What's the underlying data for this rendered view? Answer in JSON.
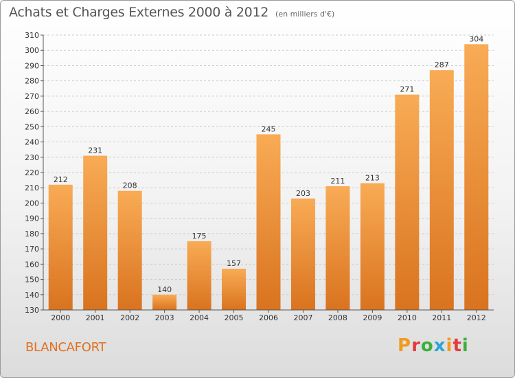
{
  "header": {
    "title": "Achats et Charges Externes 2000 à 2012",
    "subtitle": "(en milliers d'€)"
  },
  "footer": {
    "commune": "BLANCAFORT",
    "logo_letters": [
      "P",
      "r",
      "o",
      "x",
      "i",
      "t",
      "i"
    ],
    "logo_colors": [
      "#f39a1b",
      "#e23c3c",
      "#3ab03a",
      "#2aa6d6",
      "#f39a1b",
      "#e23c3c",
      "#3ab03a"
    ]
  },
  "colors": {
    "bar_light": "#f9ab55",
    "bar_dark": "#d9731f",
    "axis": "#555555",
    "grid": "#cccccc"
  },
  "chart_data": {
    "type": "bar",
    "categories": [
      "2000",
      "2001",
      "2002",
      "2003",
      "2004",
      "2005",
      "2006",
      "2007",
      "2008",
      "2009",
      "2010",
      "2011",
      "2012"
    ],
    "values": [
      212,
      231,
      208,
      140,
      175,
      157,
      245,
      203,
      211,
      213,
      271,
      287,
      304
    ],
    "title": "Achats et Charges Externes 2000 à 2012",
    "xlabel": "",
    "ylabel": "",
    "ylim": [
      130,
      310
    ],
    "yticks": [
      130,
      140,
      150,
      160,
      170,
      180,
      190,
      200,
      210,
      220,
      230,
      240,
      250,
      260,
      270,
      280,
      290,
      300,
      310
    ],
    "grid": true,
    "data_labels": true
  }
}
